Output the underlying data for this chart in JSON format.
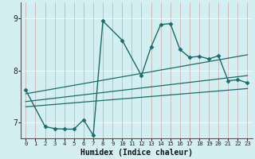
{
  "xlabel": "Humidex (Indice chaleur)",
  "bg_color": "#d4eff2",
  "grid_color": "#b8dde0",
  "line_color": "#1a6b6b",
  "xlim": [
    -0.5,
    23.5
  ],
  "ylim": [
    6.7,
    9.3
  ],
  "yticks": [
    7,
    8,
    9
  ],
  "xticks": [
    0,
    1,
    2,
    3,
    4,
    5,
    6,
    7,
    8,
    9,
    10,
    11,
    12,
    13,
    14,
    15,
    16,
    17,
    18,
    19,
    20,
    21,
    22,
    23
  ],
  "series": [
    {
      "x": [
        0,
        2,
        3,
        4,
        5,
        6,
        7,
        8,
        10,
        12,
        13,
        14,
        15,
        16,
        17,
        18,
        19,
        20,
        21,
        22,
        23
      ],
      "y": [
        7.62,
        6.92,
        6.88,
        6.87,
        6.87,
        7.05,
        6.75,
        8.95,
        8.58,
        7.9,
        8.45,
        8.88,
        8.9,
        8.4,
        8.25,
        8.27,
        8.22,
        8.28,
        7.8,
        7.82,
        7.76
      ],
      "marker": "D",
      "markersize": 2.5,
      "linewidth": 1.0
    },
    {
      "x": [
        0,
        23
      ],
      "y": [
        7.55,
        8.3
      ],
      "marker": null,
      "linewidth": 0.9
    },
    {
      "x": [
        0,
        23
      ],
      "y": [
        7.4,
        7.9
      ],
      "marker": null,
      "linewidth": 0.9
    },
    {
      "x": [
        0,
        23
      ],
      "y": [
        7.3,
        7.65
      ],
      "marker": null,
      "linewidth": 0.9
    }
  ]
}
